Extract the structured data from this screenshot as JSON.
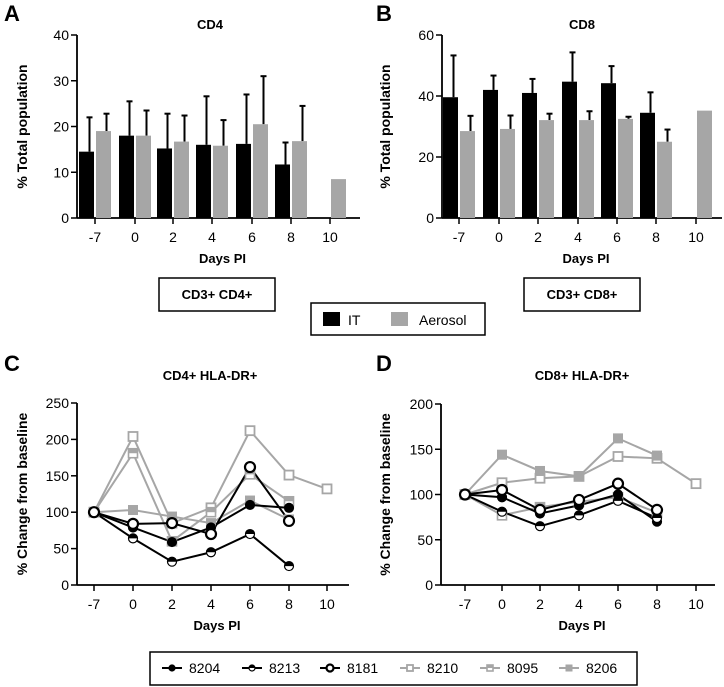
{
  "figure": {
    "panel_letters": [
      "A",
      "B",
      "C",
      "D"
    ],
    "subset_boxes": [
      "CD3+ CD4+",
      "CD3+ CD8+"
    ],
    "bar_legend": [
      {
        "label": "IT",
        "color": "#000000"
      },
      {
        "label": "Aerosol",
        "color": "#a6a6a6"
      }
    ],
    "line_legend": [
      {
        "label": "8204",
        "color": "#000000",
        "marker": "filled-circle"
      },
      {
        "label": "8213",
        "color": "#000000",
        "marker": "half-filled-circle"
      },
      {
        "label": "8181",
        "color": "#000000",
        "marker": "open-circle"
      },
      {
        "label": "8210",
        "color": "#a6a6a6",
        "marker": "open-square"
      },
      {
        "label": "8095",
        "color": "#a6a6a6",
        "marker": "half-filled-square"
      },
      {
        "label": "8206",
        "color": "#a6a6a6",
        "marker": "filled-square"
      }
    ]
  },
  "chart_data": [
    {
      "panel": "A",
      "type": "bar",
      "title": "CD4",
      "xlabel": "Days PI",
      "ylabel": "% Total population",
      "categories": [
        "-7",
        "0",
        "2",
        "4",
        "6",
        "8",
        "10"
      ],
      "ylim": [
        0,
        40
      ],
      "yticks": [
        0,
        10,
        20,
        30,
        40
      ],
      "series": [
        {
          "name": "IT",
          "color": "#000000",
          "values": [
            14.5,
            18.0,
            15.2,
            16.0,
            16.2,
            11.7,
            null
          ],
          "error_upper": [
            22.0,
            25.5,
            22.8,
            26.6,
            27.0,
            16.5,
            null
          ]
        },
        {
          "name": "Aerosol",
          "color": "#a6a6a6",
          "values": [
            19.0,
            18.0,
            16.7,
            15.8,
            20.5,
            16.8,
            8.5
          ],
          "error_upper": [
            22.8,
            23.5,
            22.4,
            21.4,
            31.0,
            24.5,
            null
          ]
        }
      ]
    },
    {
      "panel": "B",
      "type": "bar",
      "title": "CD8",
      "xlabel": "Days PI",
      "ylabel": "% Total population",
      "categories": [
        "-7",
        "0",
        "2",
        "4",
        "6",
        "8",
        "10"
      ],
      "ylim": [
        0,
        60
      ],
      "yticks": [
        0,
        20,
        40,
        60
      ],
      "series": [
        {
          "name": "IT",
          "color": "#000000",
          "values": [
            39.6,
            42.0,
            41.0,
            44.7,
            44.2,
            34.5,
            null
          ],
          "error_upper": [
            53.3,
            46.7,
            45.6,
            54.3,
            49.8,
            41.2,
            null
          ]
        },
        {
          "name": "Aerosol",
          "color": "#a6a6a6",
          "values": [
            28.5,
            29.2,
            32.1,
            32.1,
            32.5,
            25.0,
            35.2
          ],
          "error_upper": [
            33.5,
            33.6,
            34.2,
            35.0,
            33.2,
            29.0,
            null
          ]
        }
      ]
    },
    {
      "panel": "C",
      "type": "line",
      "title": "CD4+ HLA-DR+",
      "xlabel": "Days PI",
      "ylabel": "% Change from baseline",
      "categories": [
        "-7",
        "0",
        "2",
        "4",
        "6",
        "8",
        "10"
      ],
      "ylim": [
        0,
        250
      ],
      "yticks": [
        0,
        50,
        100,
        150,
        200,
        250
      ],
      "series": [
        {
          "name": "8204",
          "values": [
            100,
            79,
            59,
            79,
            110,
            106,
            null
          ]
        },
        {
          "name": "8213",
          "values": [
            100,
            64,
            32,
            45,
            70,
            26,
            null
          ]
        },
        {
          "name": "8181",
          "values": [
            100,
            84,
            85,
            70,
            162,
            88,
            null
          ]
        },
        {
          "name": "8210",
          "values": [
            100,
            204,
            85,
            106,
            212,
            151,
            132
          ]
        },
        {
          "name": "8095",
          "values": [
            100,
            181,
            60,
            100,
            152,
            115,
            null
          ]
        },
        {
          "name": "8206",
          "values": [
            100,
            103,
            94,
            85,
            116,
            90,
            null
          ]
        }
      ]
    },
    {
      "panel": "D",
      "type": "line",
      "title": "CD8+ HLA-DR+",
      "xlabel": "Days PI",
      "ylabel": "% Change from baseline",
      "categories": [
        "-7",
        "0",
        "2",
        "4",
        "6",
        "8",
        "10"
      ],
      "ylim": [
        0,
        200
      ],
      "yticks": [
        0,
        50,
        100,
        150,
        200
      ],
      "series": [
        {
          "name": "8204",
          "values": [
            100,
            97,
            79,
            88,
            100,
            70,
            null
          ]
        },
        {
          "name": "8213",
          "values": [
            100,
            81,
            65,
            77,
            93,
            74,
            null
          ]
        },
        {
          "name": "8181",
          "values": [
            100,
            105,
            83,
            94,
            112,
            83,
            null
          ]
        },
        {
          "name": "8210",
          "values": [
            100,
            113,
            118,
            120,
            142,
            140,
            112
          ]
        },
        {
          "name": "8095",
          "values": [
            100,
            77,
            86,
            92,
            97,
            80,
            null
          ]
        },
        {
          "name": "8206",
          "values": [
            100,
            144,
            126,
            120,
            162,
            143,
            null
          ]
        }
      ]
    }
  ]
}
